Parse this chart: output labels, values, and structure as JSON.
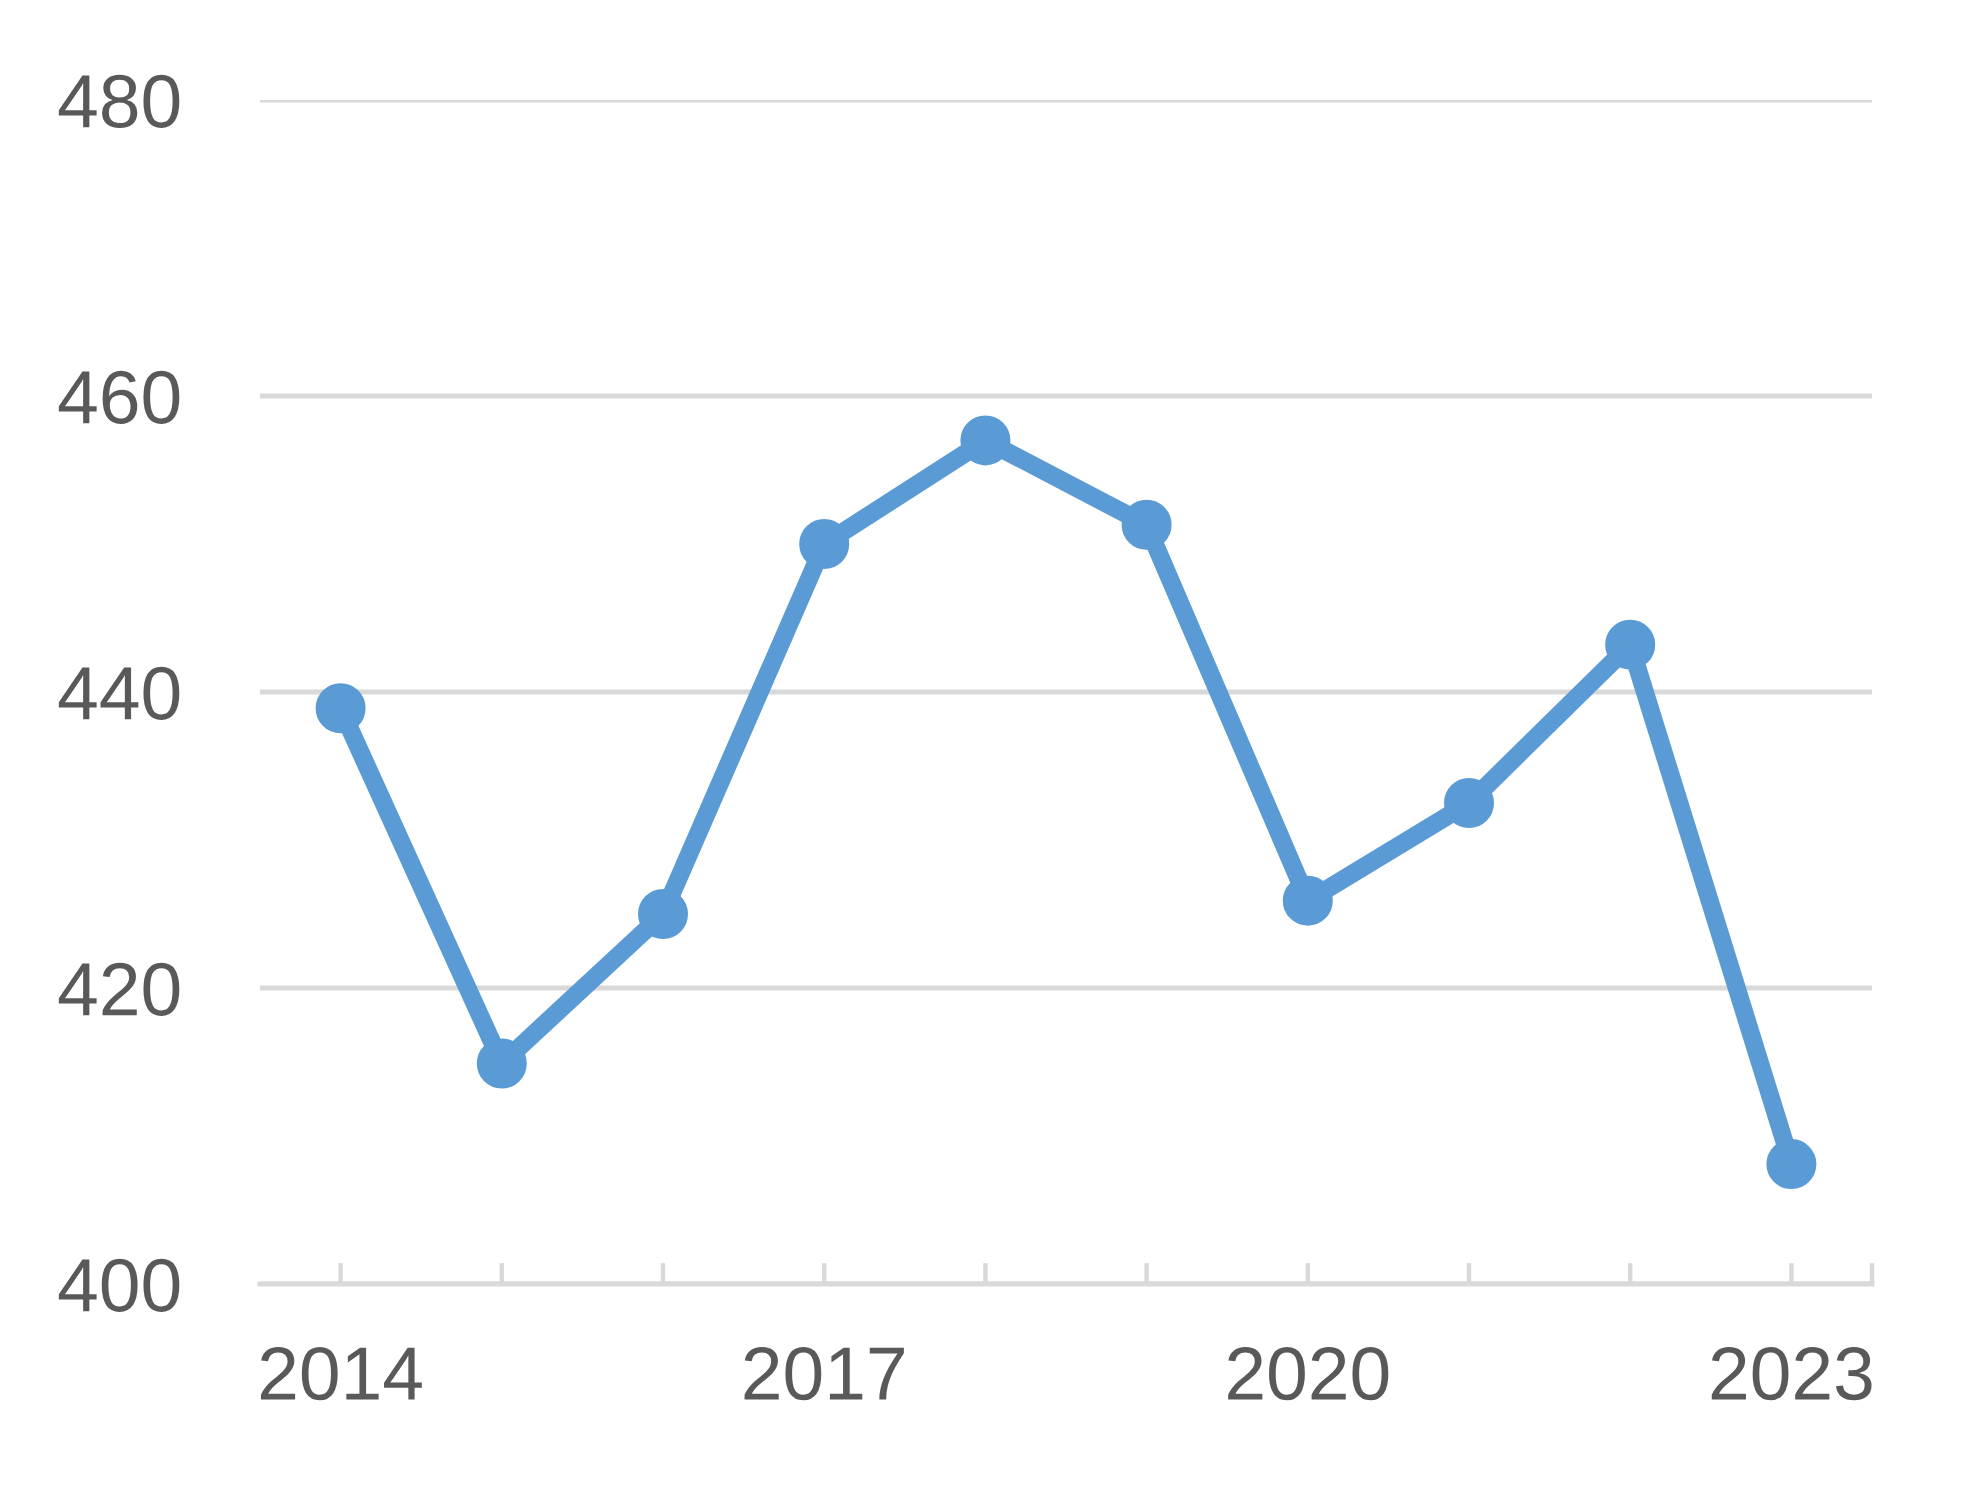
{
  "chart_data": {
    "type": "line",
    "x": [
      2014,
      2015,
      2016,
      2017,
      2018,
      2019,
      2020,
      2021,
      2022,
      2023
    ],
    "series": [
      {
        "color": "#5b9bd5",
        "values": [
          438.9,
          414.9,
          425.0,
          450.0,
          457.0,
          451.3,
          425.9,
          432.5,
          443.2,
          408.1
        ]
      }
    ],
    "xlim": [
      2013.5,
      2023.5
    ],
    "xticks": [
      2014,
      {
        "value": 2015,
        "label": null
      },
      {
        "value": 2016,
        "label": null
      },
      2017,
      {
        "value": 2018,
        "label": null
      },
      {
        "value": 2019,
        "label": null
      },
      2020,
      {
        "value": 2021,
        "label": null
      },
      {
        "value": 2022,
        "label": null
      },
      2023,
      {
        "value": 2023.5,
        "label": null
      }
    ],
    "ylim": [
      400,
      480
    ],
    "yticks": [
      400,
      420,
      440,
      460,
      480
    ],
    "grid": "y",
    "marker": "circle",
    "line_style": "solid"
  }
}
